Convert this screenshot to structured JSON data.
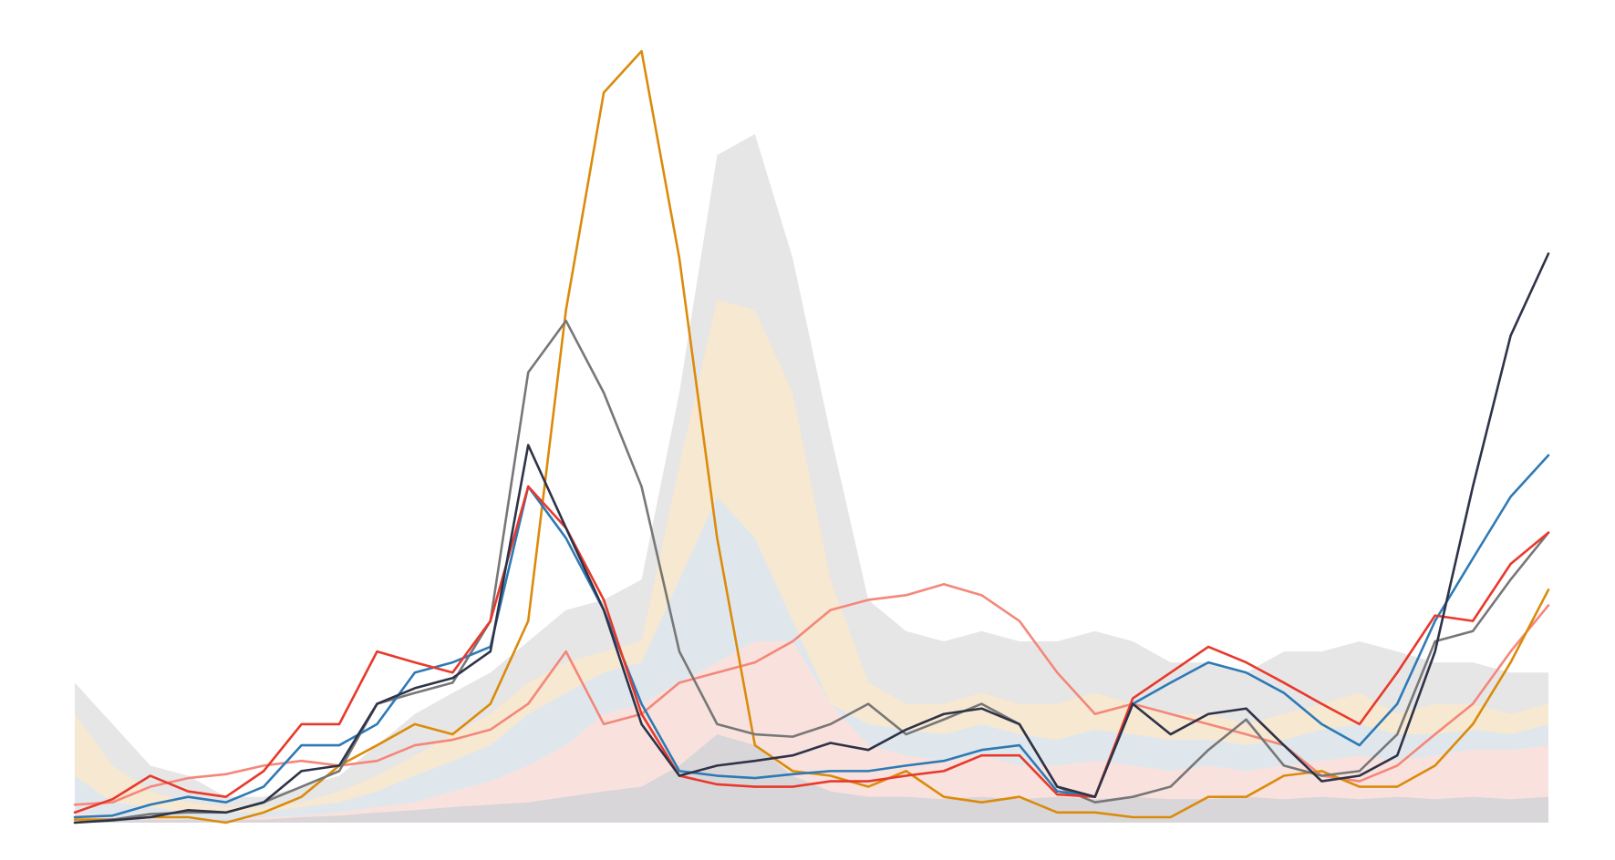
{
  "chart_data": {
    "type": "line",
    "x": [
      0,
      1,
      2,
      3,
      4,
      5,
      6,
      7,
      8,
      9,
      10,
      11,
      12,
      13,
      14,
      15,
      16,
      17,
      18,
      19,
      20,
      21,
      22,
      23,
      24,
      25,
      26,
      27,
      28,
      29,
      30,
      31,
      32,
      33,
      34,
      35,
      36,
      37,
      38,
      39
    ],
    "xlim": [
      0,
      39
    ],
    "ylim": [
      0,
      100
    ],
    "grid": false,
    "series": [
      {
        "style": "area",
        "color": "#e2e2e2",
        "values": [
          17.9,
          12.6,
          7.3,
          6.0,
          3.3,
          3.3,
          4.6,
          6.0,
          9.9,
          13.9,
          16.6,
          19.2,
          23.2,
          27.2,
          28.5,
          31.1,
          55.0,
          85.4,
          88.1,
          72.2,
          49.7,
          28.5,
          24.5,
          23.2,
          24.5,
          23.2,
          23.2,
          24.5,
          23.2,
          20.5,
          20.5,
          19.2,
          21.9,
          21.9,
          23.2,
          21.9,
          20.5,
          20.5,
          19.2,
          19.2
        ]
      },
      {
        "style": "area",
        "color": "#f9e8cc",
        "values": [
          13.9,
          7.3,
          4.0,
          2.6,
          2.0,
          2.0,
          2.6,
          4.0,
          6.0,
          8.6,
          11.3,
          13.9,
          17.9,
          20.5,
          21.9,
          23.2,
          45.7,
          66.9,
          65.6,
          55.0,
          31.1,
          17.9,
          15.2,
          15.2,
          16.6,
          15.2,
          15.2,
          16.6,
          15.2,
          13.9,
          13.9,
          12.6,
          13.9,
          15.2,
          16.6,
          13.9,
          15.2,
          15.2,
          13.9,
          15.2
        ]
      },
      {
        "style": "area",
        "color": "#dce6f1",
        "values": [
          6.0,
          2.6,
          2.0,
          1.3,
          1.3,
          1.3,
          2.0,
          2.6,
          4.0,
          6.0,
          7.9,
          9.9,
          13.9,
          16.6,
          19.2,
          20.5,
          31.1,
          41.7,
          36.4,
          25.8,
          15.2,
          12.6,
          11.9,
          11.3,
          12.6,
          11.3,
          10.6,
          11.9,
          11.3,
          10.6,
          10.6,
          9.9,
          10.6,
          11.9,
          12.6,
          11.3,
          11.3,
          11.9,
          11.3,
          12.6
        ]
      },
      {
        "style": "area",
        "color": "#fde0dc",
        "values": [
          1.3,
          0.7,
          0.7,
          0.4,
          0.4,
          0.7,
          0.9,
          1.3,
          2.0,
          2.6,
          4.0,
          5.3,
          7.3,
          9.9,
          13.9,
          15.2,
          17.9,
          20.5,
          23.2,
          23.2,
          15.2,
          9.9,
          8.6,
          7.9,
          8.6,
          7.3,
          7.3,
          7.9,
          7.3,
          6.6,
          7.3,
          6.6,
          7.3,
          7.9,
          8.6,
          7.9,
          8.6,
          9.3,
          9.3,
          9.9
        ]
      },
      {
        "style": "area",
        "color": "#d3d3d8",
        "values": [
          0.4,
          0.4,
          0.4,
          0.4,
          0.4,
          0.4,
          0.7,
          0.9,
          1.3,
          1.6,
          2.0,
          2.3,
          2.6,
          3.3,
          4.0,
          4.6,
          7.3,
          11.3,
          9.9,
          6.0,
          4.0,
          3.3,
          3.3,
          3.0,
          3.3,
          3.0,
          3.3,
          3.0,
          3.3,
          3.0,
          3.0,
          3.3,
          3.0,
          3.3,
          3.0,
          3.3,
          3.0,
          3.3,
          3.0,
          3.3
        ]
      },
      {
        "style": "line",
        "color": "#f4877a",
        "values": [
          2.3,
          2.6,
          4.6,
          5.7,
          6.2,
          7.3,
          7.9,
          7.3,
          7.9,
          9.9,
          10.6,
          11.9,
          15.2,
          21.9,
          12.6,
          13.9,
          17.9,
          19.2,
          20.5,
          23.2,
          27.2,
          28.5,
          29.1,
          30.5,
          29.1,
          25.8,
          19.2,
          13.9,
          15.2,
          13.9,
          12.6,
          11.3,
          9.9,
          6.0,
          5.3,
          7.3,
          11.3,
          15.2,
          21.9,
          27.8
        ]
      },
      {
        "style": "line",
        "color": "#db8b0b",
        "values": [
          0.4,
          0.4,
          0.7,
          0.7,
          0,
          1.3,
          3.3,
          7.3,
          9.9,
          12.6,
          11.3,
          15.2,
          25.8,
          65.6,
          93.4,
          98.7,
          72.2,
          36.4,
          9.9,
          6.6,
          6.0,
          4.6,
          6.6,
          3.3,
          2.6,
          3.3,
          1.3,
          1.3,
          0.7,
          0.7,
          3.3,
          3.3,
          6.0,
          6.6,
          4.6,
          4.6,
          7.3,
          12.6,
          20.5,
          29.8
        ]
      },
      {
        "style": "line",
        "color": "#777777",
        "values": [
          0,
          0.4,
          1.1,
          1.3,
          1.3,
          2.6,
          4.6,
          6.6,
          15.2,
          16.6,
          17.9,
          25.8,
          57.6,
          64.2,
          55.0,
          43.0,
          21.9,
          12.6,
          11.3,
          11.0,
          12.6,
          15.2,
          11.3,
          13.2,
          15.2,
          12.6,
          4.6,
          2.6,
          3.3,
          4.6,
          9.3,
          13.2,
          7.3,
          6.0,
          6.6,
          11.3,
          23.2,
          24.5,
          31.1,
          37.1
        ]
      },
      {
        "style": "line",
        "color": "#2e7ab5",
        "values": [
          0.7,
          0.9,
          2.3,
          3.3,
          2.6,
          4.6,
          9.9,
          9.9,
          12.6,
          19.2,
          20.5,
          22.5,
          43.0,
          36.4,
          27.2,
          15.2,
          6.6,
          6.0,
          5.7,
          6.2,
          6.6,
          6.6,
          7.3,
          7.9,
          9.3,
          9.9,
          4.0,
          3.3,
          15.2,
          17.9,
          20.5,
          19.2,
          16.6,
          12.6,
          9.9,
          15.2,
          25.8,
          33.8,
          41.7,
          47.0
        ]
      },
      {
        "style": "line",
        "color": "#e8392c",
        "values": [
          1.3,
          3.0,
          6.0,
          4.0,
          3.3,
          6.6,
          12.6,
          12.6,
          21.9,
          20.5,
          19.2,
          25.8,
          43.0,
          37.7,
          28.5,
          13.9,
          6.0,
          4.9,
          4.6,
          4.6,
          5.3,
          5.3,
          6.0,
          6.6,
          8.6,
          8.6,
          3.6,
          3.3,
          15.9,
          19.2,
          22.5,
          20.5,
          17.9,
          15.2,
          12.6,
          19.2,
          26.5,
          25.8,
          33.1,
          37.1
        ]
      },
      {
        "style": "line",
        "color": "#2e3348",
        "values": [
          0,
          0.3,
          0.7,
          1.6,
          1.3,
          2.6,
          6.6,
          7.3,
          15.2,
          17.2,
          18.5,
          21.9,
          48.3,
          37.7,
          27.2,
          12.6,
          6.0,
          7.3,
          7.9,
          8.6,
          10.2,
          9.3,
          11.9,
          13.9,
          14.6,
          12.6,
          4.6,
          3.3,
          15.2,
          11.3,
          13.9,
          14.6,
          9.9,
          5.3,
          6.0,
          8.6,
          21.9,
          43.0,
          62.3,
          72.8
        ]
      }
    ]
  }
}
